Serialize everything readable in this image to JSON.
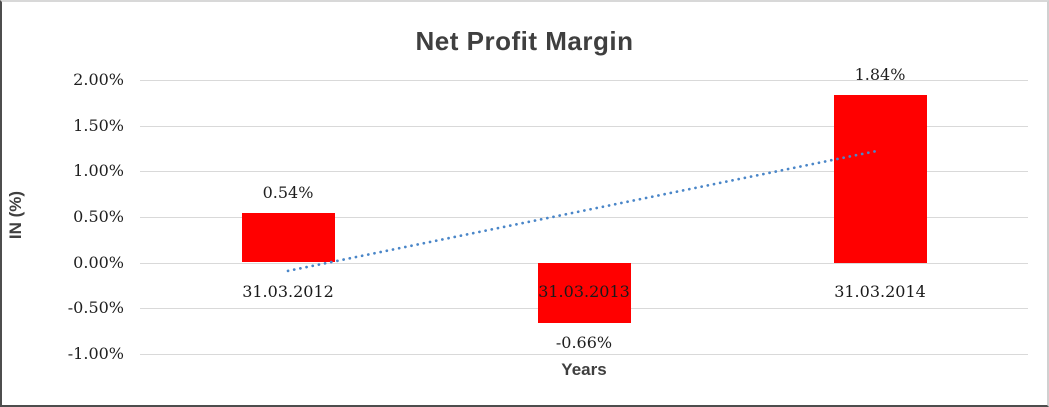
{
  "chart_data": {
    "type": "bar",
    "title": "Net Profit Margin",
    "xlabel": "Years",
    "ylabel": "IN (%)",
    "categories": [
      "31.03.2012",
      "31.03.2013",
      "31.03.2014"
    ],
    "values": [
      0.54,
      -0.66,
      1.84
    ],
    "value_labels": [
      "0.54%",
      "-0.66%",
      "1.84%"
    ],
    "yticks": [
      2.0,
      1.5,
      1.0,
      0.5,
      0.0,
      -0.5,
      -1.0
    ],
    "ytick_labels": [
      "2.00%",
      "1.50%",
      "1.00%",
      "0.50%",
      "0.00%",
      "-0.50%",
      "-1.00%"
    ],
    "ylim": [
      -1.0,
      2.0
    ],
    "grid": true,
    "legend": false,
    "bar_color": "#ff0000",
    "gridline_color": "#d9d9d9",
    "label_color": "#1f1f1f",
    "title_color": "#3f3f3f",
    "trendline": {
      "style": "dotted",
      "color": "#4a86c8",
      "start_value": -0.09,
      "end_value": 1.23
    }
  }
}
